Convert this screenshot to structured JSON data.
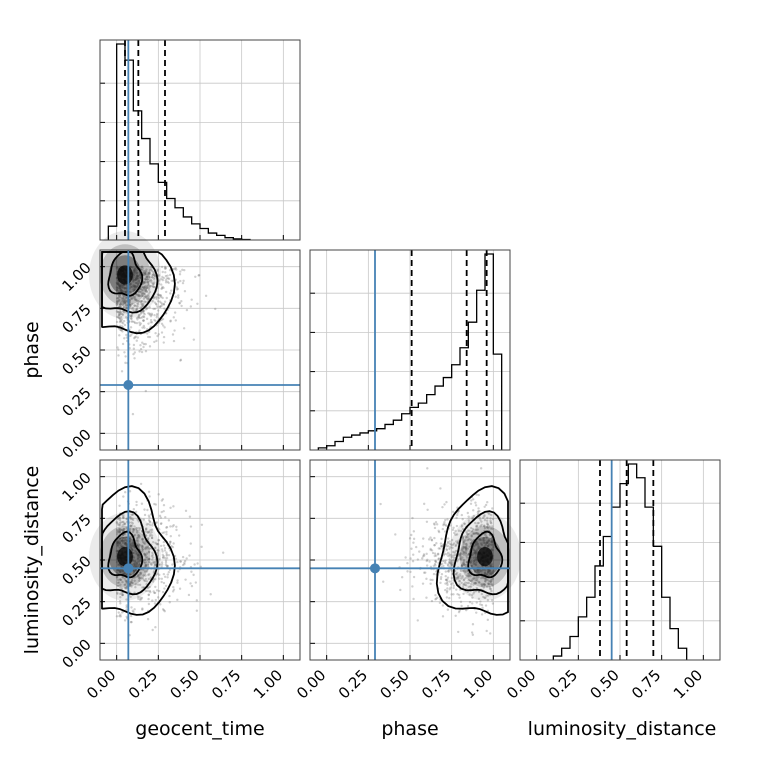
{
  "chart_data": {
    "type": "scatter",
    "subtype": "corner-plot",
    "parameters": [
      "geocent_time",
      "phase",
      "luminosity_distance"
    ],
    "axis_range": [
      -0.1,
      1.1
    ],
    "tick_values": [
      0.0,
      0.25,
      0.5,
      0.75,
      1.0
    ],
    "tick_labels": [
      "0.00",
      "0.25",
      "0.50",
      "0.75",
      "1.00"
    ],
    "grid": true,
    "colors": {
      "truth": "#4682b4",
      "contour": "#000000",
      "points": "#777777"
    },
    "truths": {
      "geocent_time": 0.07,
      "phase": 0.29,
      "luminosity_distance": 0.45
    },
    "quantiles": {
      "geocent_time": [
        0.05,
        0.13,
        0.29
      ],
      "phase": [
        0.51,
        0.84,
        0.96
      ],
      "luminosity_distance": [
        0.38,
        0.54,
        0.7
      ]
    },
    "histograms": {
      "geocent_time": {
        "bin_edges": [
          -0.05,
          0.0,
          0.05,
          0.1,
          0.15,
          0.2,
          0.25,
          0.3,
          0.35,
          0.4,
          0.45,
          0.5,
          0.55,
          0.6,
          0.65,
          0.7,
          0.75,
          0.8
        ],
        "counts": [
          0.06,
          0.85,
          0.78,
          0.56,
          0.44,
          0.33,
          0.25,
          0.18,
          0.14,
          0.1,
          0.07,
          0.05,
          0.03,
          0.02,
          0.01,
          0.005,
          0.002
        ]
      },
      "phase": {
        "bin_edges": [
          -0.05,
          0.0,
          0.05,
          0.1,
          0.15,
          0.2,
          0.25,
          0.3,
          0.35,
          0.4,
          0.45,
          0.5,
          0.55,
          0.6,
          0.65,
          0.7,
          0.75,
          0.8,
          0.85,
          0.9,
          0.95,
          1.0,
          1.05
        ],
        "counts": [
          0.01,
          0.02,
          0.04,
          0.06,
          0.07,
          0.08,
          0.09,
          0.1,
          0.12,
          0.14,
          0.17,
          0.2,
          0.22,
          0.26,
          0.3,
          0.34,
          0.4,
          0.48,
          0.6,
          0.75,
          0.92,
          0.45
        ]
      },
      "luminosity_distance": {
        "bin_edges": [
          0.1,
          0.15,
          0.2,
          0.25,
          0.3,
          0.35,
          0.4,
          0.45,
          0.5,
          0.55,
          0.6,
          0.65,
          0.7,
          0.75,
          0.8,
          0.85,
          0.9
        ],
        "counts": [
          0.02,
          0.06,
          0.12,
          0.22,
          0.32,
          0.48,
          0.63,
          0.78,
          0.9,
          1.0,
          0.93,
          0.78,
          0.58,
          0.32,
          0.16,
          0.06
        ]
      }
    },
    "density_mode": {
      "geocent_time_vs_phase": [
        0.05,
        0.95
      ],
      "geocent_time_vs_luminosity_distance": [
        0.05,
        0.52
      ],
      "phase_vs_luminosity_distance": [
        0.95,
        0.52
      ]
    }
  }
}
